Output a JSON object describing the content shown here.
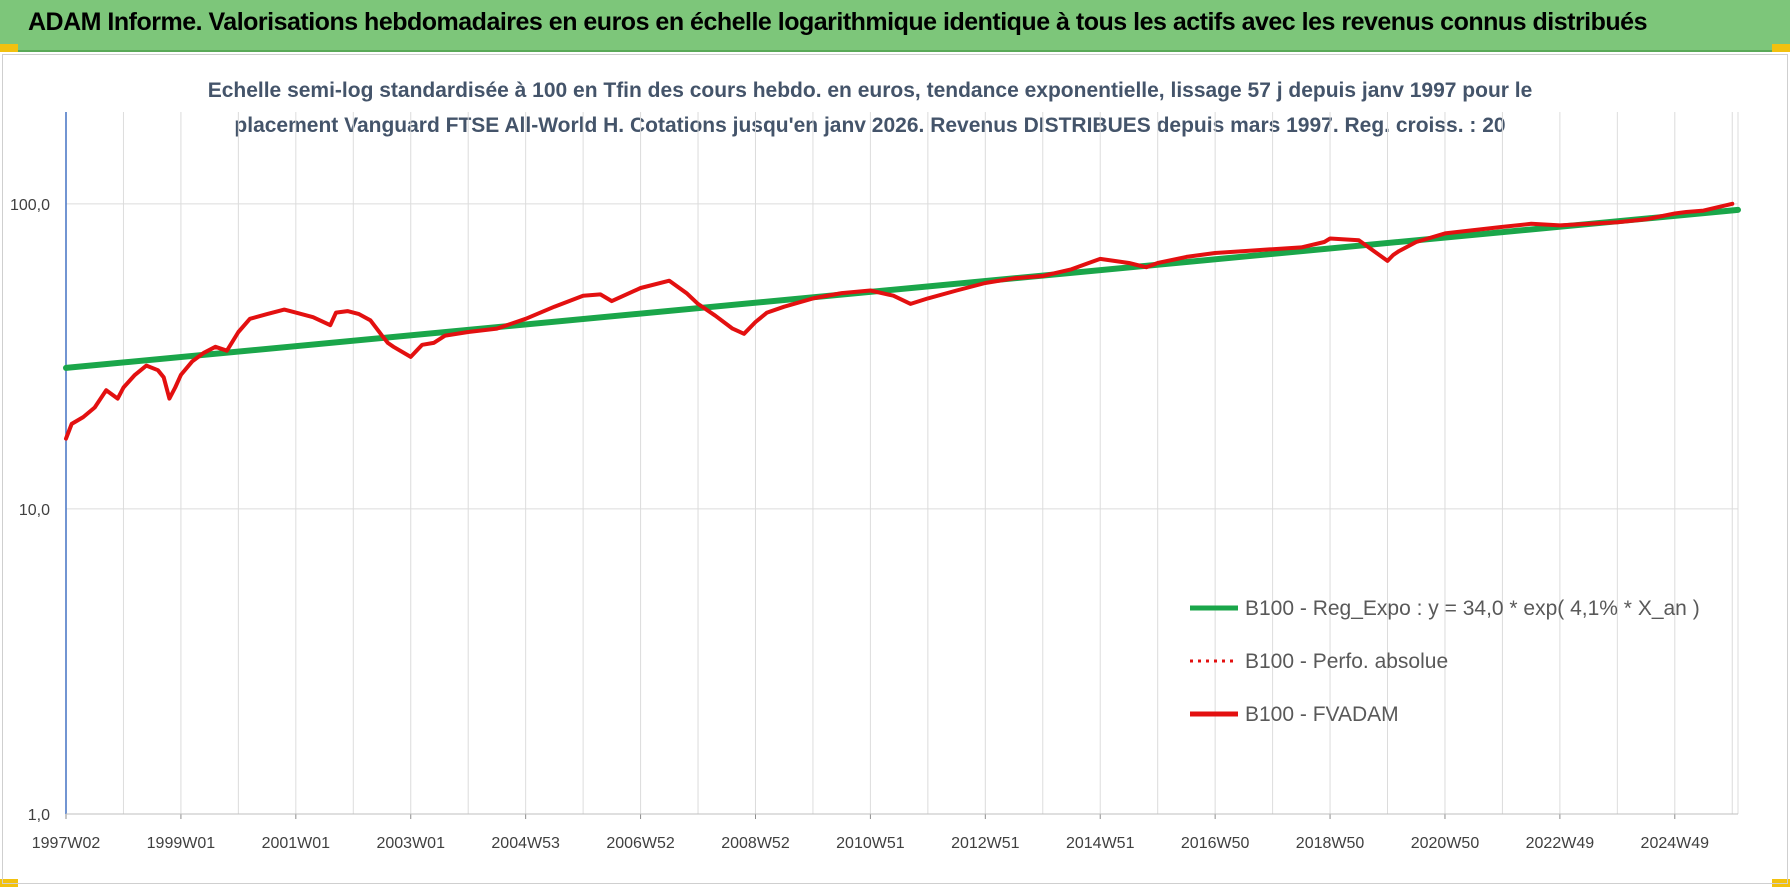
{
  "banner": {
    "title": "ADAM Informe. Valorisations hebdomadaires en euros en échelle logarithmique identique à tous les actifs avec les revenus connus distribués"
  },
  "colors": {
    "banner": "#7dc67a",
    "regression": "#1aa64a",
    "fvadam": "#e31010",
    "subtitle": "#44546a",
    "grid": "#dcdcdc"
  },
  "chart_data": {
    "type": "line",
    "title_line1": "Echelle semi-log standardisée à 100 en Tfin des cours hebdo. en euros, tendance exponentielle, lissage 57 j depuis janv 1997 pour le",
    "title_line2": "placement Vanguard FTSE All-World H. Cotations jusqu'en janv 2026. Revenus DISTRIBUES depuis mars 1997. Reg. croiss. : 20",
    "y_scale": "log",
    "ylim": [
      1,
      200
    ],
    "xlim": [
      1997.0,
      2026.1
    ],
    "y_ticks": [
      {
        "value": 1,
        "label": "1,0"
      },
      {
        "value": 10,
        "label": "10,0"
      },
      {
        "value": 100,
        "label": "100,0"
      }
    ],
    "x_ticks": [
      {
        "x": 1997.0,
        "label": "1997W02"
      },
      {
        "x": 1999.0,
        "label": "1999W01"
      },
      {
        "x": 2001.0,
        "label": "2001W01"
      },
      {
        "x": 2003.0,
        "label": "2003W01"
      },
      {
        "x": 2005.0,
        "label": "2004W53"
      },
      {
        "x": 2007.0,
        "label": "2006W52"
      },
      {
        "x": 2009.0,
        "label": "2008W52"
      },
      {
        "x": 2011.0,
        "label": "2010W51"
      },
      {
        "x": 2013.0,
        "label": "2012W51"
      },
      {
        "x": 2015.0,
        "label": "2014W51"
      },
      {
        "x": 2017.0,
        "label": "2016W50"
      },
      {
        "x": 2019.0,
        "label": "2018W50"
      },
      {
        "x": 2021.0,
        "label": "2020W50"
      },
      {
        "x": 2023.0,
        "label": "2022W49"
      },
      {
        "x": 2025.0,
        "label": "2024W49"
      }
    ],
    "grid": "vertical-and-horizontal",
    "legend_position": "bottom-right",
    "series": [
      {
        "name": "B100 - Reg_Expo : y = 34,0 * exp( 4,1% *  X_an )",
        "style": "solid",
        "color": "#1aa64a",
        "x": [
          1997.0,
          2026.1
        ],
        "y": [
          29.0,
          95.5
        ]
      },
      {
        "name": "B100 - Perfo. absolue",
        "style": "dotted",
        "color": "#e31010",
        "x": [],
        "y": []
      },
      {
        "name": "B100 - FVADAM",
        "style": "solid",
        "color": "#e31010",
        "x": [
          1997.0,
          1997.1,
          1997.3,
          1997.5,
          1997.7,
          1997.9,
          1998.0,
          1998.2,
          1998.4,
          1998.6,
          1998.7,
          1998.8,
          1998.9,
          1999.0,
          1999.2,
          1999.4,
          1999.6,
          1999.8,
          2000.0,
          2000.2,
          2000.5,
          2000.8,
          2001.0,
          2001.3,
          2001.6,
          2001.7,
          2001.9,
          2002.1,
          2002.3,
          2002.5,
          2002.6,
          2002.7,
          2003.0,
          2003.2,
          2003.4,
          2003.6,
          2004.0,
          2004.5,
          2005.0,
          2005.5,
          2006.0,
          2006.3,
          2006.5,
          2007.0,
          2007.5,
          2007.8,
          2008.0,
          2008.3,
          2008.6,
          2008.8,
          2009.0,
          2009.2,
          2009.5,
          2010.0,
          2010.5,
          2011.0,
          2011.4,
          2011.7,
          2012.0,
          2012.5,
          2013.0,
          2013.5,
          2014.0,
          2014.5,
          2014.8,
          2015.0,
          2015.5,
          2015.8,
          2016.0,
          2016.5,
          2017.0,
          2017.5,
          2018.0,
          2018.5,
          2018.9,
          2019.0,
          2019.5,
          2020.0,
          2020.1,
          2020.2,
          2020.5,
          2021.0,
          2021.5,
          2022.0,
          2022.5,
          2023.0,
          2023.5,
          2024.0,
          2024.5,
          2025.0,
          2025.2,
          2025.5,
          2026.0
        ],
        "y": [
          17.0,
          19.0,
          20.0,
          21.5,
          24.5,
          23.0,
          25.0,
          27.5,
          29.5,
          28.5,
          27.0,
          23.0,
          25.0,
          27.5,
          30.5,
          32.5,
          34.0,
          33.0,
          38.0,
          42.0,
          43.5,
          45.0,
          44.0,
          42.5,
          40.0,
          44.0,
          44.5,
          43.5,
          41.5,
          37.0,
          35.0,
          34.0,
          31.5,
          34.5,
          35.0,
          37.0,
          38.0,
          39.0,
          42.0,
          46.0,
          50.0,
          50.5,
          48.0,
          53.0,
          56.0,
          51.0,
          47.0,
          43.0,
          39.0,
          37.5,
          41.0,
          44.0,
          46.0,
          49.0,
          51.0,
          52.0,
          50.0,
          47.0,
          49.0,
          52.0,
          55.0,
          57.0,
          58.0,
          61.0,
          64.0,
          66.0,
          64.0,
          62.0,
          64.0,
          67.0,
          69.0,
          70.0,
          71.0,
          72.0,
          75.0,
          77.0,
          76.0,
          65.0,
          68.0,
          70.0,
          75.0,
          80.0,
          82.0,
          84.0,
          86.0,
          85.0,
          86.0,
          87.0,
          89.0,
          93.0,
          94.0,
          95.0,
          100.0
        ]
      }
    ]
  }
}
